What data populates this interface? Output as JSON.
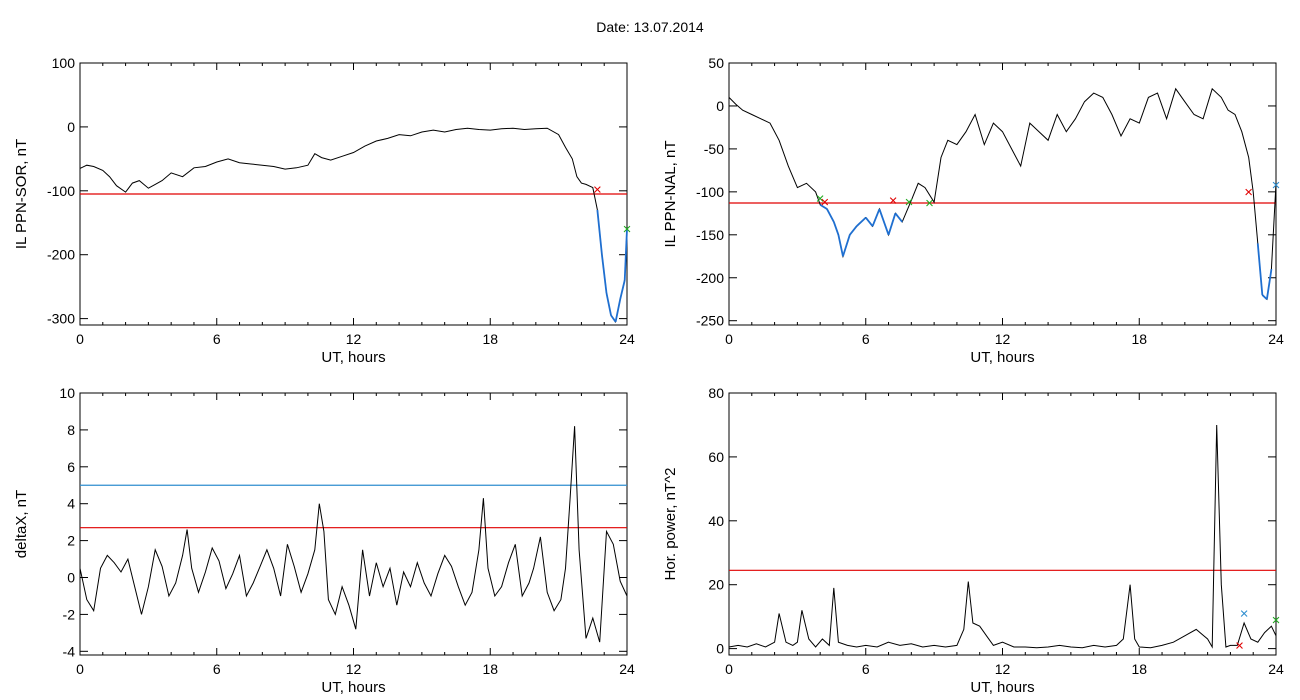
{
  "title": "Date:  13.07.2014",
  "colors": {
    "red": "#e00000",
    "blue": "#1f6fd0",
    "cyan": "#2f8ecf",
    "green": "#22aa22",
    "line": "#000000"
  },
  "chart_data": [
    {
      "type": "line",
      "ylabel": "IL PPN-SOR, nT",
      "xlabel": "UT, hours",
      "xlim": [
        0,
        24
      ],
      "ylim": [
        -310,
        100
      ],
      "xticks": [
        "0",
        "6",
        "12",
        "18",
        "24"
      ],
      "yticks": [
        "100",
        "0",
        "-100",
        "-200",
        "-300"
      ],
      "ytick_values": [
        100,
        0,
        -100,
        -200,
        -300
      ],
      "threshold": -105,
      "series": [
        {
          "x": [
            0,
            0.3,
            0.6,
            1,
            1.3,
            1.6,
            2,
            2.3,
            2.6,
            3,
            3.3,
            3.6,
            4,
            4.5,
            5,
            5.5,
            6,
            6.5,
            7,
            7.5,
            8,
            8.5,
            9,
            9.5,
            10,
            10.3,
            10.6,
            11,
            11.5,
            12,
            12.5,
            13,
            13.5,
            14,
            14.5,
            15,
            15.5,
            16,
            16.5,
            17,
            17.5,
            18,
            18.5,
            19,
            19.5,
            20,
            20.5,
            21,
            21.3,
            21.6,
            21.8,
            22,
            22.2,
            22.5,
            22.7,
            22.9,
            23.1,
            23.3,
            23.5,
            23.7,
            23.9,
            24
          ],
          "y": [
            -65,
            -60,
            -62,
            -68,
            -78,
            -92,
            -102,
            -88,
            -84,
            -96,
            -90,
            -84,
            -72,
            -78,
            -64,
            -62,
            -55,
            -50,
            -56,
            -58,
            -60,
            -62,
            -66,
            -64,
            -60,
            -42,
            -48,
            -52,
            -46,
            -40,
            -30,
            -22,
            -18,
            -12,
            -14,
            -8,
            -5,
            -8,
            -4,
            -2,
            -4,
            -5,
            -3,
            -2,
            -4,
            -3,
            -2,
            -12,
            -32,
            -50,
            -78,
            -88,
            -90,
            -95,
            -130,
            -200,
            -260,
            -295,
            -305,
            -270,
            -240,
            -160
          ]
        }
      ],
      "markers": [
        {
          "x": 22.7,
          "y": -98,
          "symbol": "×",
          "color": "red"
        },
        {
          "x": 24,
          "y": -160,
          "symbol": "×",
          "color": "green"
        }
      ]
    },
    {
      "type": "line",
      "ylabel": "IL PPN-NAL, nT",
      "xlabel": "UT, hours",
      "xlim": [
        0,
        24
      ],
      "ylim": [
        -255,
        50
      ],
      "xticks": [
        "0",
        "6",
        "12",
        "18",
        "24"
      ],
      "yticks": [
        "50",
        "0",
        "-50",
        "-100",
        "-150",
        "-200",
        "-250"
      ],
      "ytick_values": [
        50,
        0,
        -50,
        -100,
        -150,
        -200,
        -250
      ],
      "threshold": -113,
      "series": [
        {
          "x": [
            0,
            0.3,
            0.6,
            1,
            1.4,
            1.8,
            2.2,
            2.6,
            3,
            3.4,
            3.8,
            4,
            4.3,
            4.6,
            4.8,
            5,
            5.3,
            5.6,
            6,
            6.3,
            6.6,
            7,
            7.3,
            7.6,
            8,
            8.3,
            8.6,
            9,
            9.3,
            9.6,
            10,
            10.4,
            10.8,
            11.2,
            11.6,
            12,
            12.4,
            12.8,
            13.2,
            13.6,
            14,
            14.4,
            14.8,
            15.2,
            15.6,
            16,
            16.4,
            16.8,
            17.2,
            17.6,
            18,
            18.4,
            18.8,
            19.2,
            19.6,
            20,
            20.4,
            20.8,
            21.2,
            21.6,
            21.9,
            22.2,
            22.5,
            22.8,
            23,
            23.2,
            23.4,
            23.6,
            23.8,
            24
          ],
          "y": [
            10,
            2,
            -5,
            -10,
            -15,
            -20,
            -40,
            -70,
            -95,
            -90,
            -100,
            -115,
            -120,
            -135,
            -150,
            -175,
            -150,
            -140,
            -130,
            -140,
            -120,
            -150,
            -125,
            -135,
            -110,
            -90,
            -95,
            -112,
            -60,
            -40,
            -45,
            -30,
            -10,
            -45,
            -20,
            -30,
            -50,
            -70,
            -20,
            -30,
            -40,
            -10,
            -30,
            -15,
            5,
            15,
            10,
            -10,
            -35,
            -15,
            -20,
            10,
            15,
            -15,
            20,
            5,
            -10,
            -15,
            20,
            10,
            -5,
            -10,
            -30,
            -60,
            -100,
            -160,
            -220,
            -225,
            -190,
            -90
          ]
        }
      ],
      "markers": [
        {
          "x": 4.0,
          "y": -108,
          "symbol": "×",
          "color": "green"
        },
        {
          "x": 4.2,
          "y": -112,
          "symbol": "×",
          "color": "red"
        },
        {
          "x": 7.2,
          "y": -110,
          "symbol": "×",
          "color": "red"
        },
        {
          "x": 7.9,
          "y": -112,
          "symbol": "×",
          "color": "green"
        },
        {
          "x": 8.8,
          "y": -113,
          "symbol": "×",
          "color": "green"
        },
        {
          "x": 22.8,
          "y": -100,
          "symbol": "×",
          "color": "red"
        },
        {
          "x": 24,
          "y": -92,
          "symbol": "×",
          "color": "cyan"
        }
      ]
    },
    {
      "type": "line",
      "ylabel": "deltaX, nT",
      "xlabel": "UT, hours",
      "xlim": [
        0,
        24
      ],
      "ylim": [
        -4.2,
        10
      ],
      "xticks": [
        "0",
        "6",
        "12",
        "18",
        "24"
      ],
      "yticks": [
        "10",
        "8",
        "6",
        "4",
        "2",
        "0",
        "-2",
        "-4"
      ],
      "ytick_values": [
        10,
        8,
        6,
        4,
        2,
        0,
        -2,
        -4
      ],
      "threshold": 2.7,
      "threshold2": 5.0,
      "series": [
        {
          "x": [
            0,
            0.3,
            0.6,
            0.9,
            1.2,
            1.5,
            1.8,
            2.1,
            2.4,
            2.7,
            3,
            3.3,
            3.6,
            3.9,
            4.2,
            4.5,
            4.7,
            4.9,
            5.2,
            5.5,
            5.8,
            6.1,
            6.4,
            6.7,
            7,
            7.3,
            7.6,
            7.9,
            8.2,
            8.5,
            8.8,
            9.1,
            9.4,
            9.7,
            10,
            10.3,
            10.5,
            10.7,
            10.9,
            11.2,
            11.5,
            11.8,
            12.1,
            12.4,
            12.7,
            13,
            13.3,
            13.6,
            13.9,
            14.2,
            14.5,
            14.8,
            15.1,
            15.4,
            15.7,
            16,
            16.3,
            16.6,
            16.9,
            17.2,
            17.5,
            17.7,
            17.9,
            18.2,
            18.5,
            18.8,
            19.1,
            19.4,
            19.7,
            19.9,
            20.2,
            20.5,
            20.8,
            21.1,
            21.3,
            21.5,
            21.7,
            21.9,
            22.2,
            22.5,
            22.8,
            23.1,
            23.4,
            23.7,
            24
          ],
          "y": [
            0.5,
            -1.2,
            -1.8,
            0.5,
            1.2,
            0.8,
            0.3,
            1.0,
            -0.5,
            -2.0,
            -0.5,
            1.5,
            0.6,
            -1.0,
            -0.3,
            1.2,
            2.6,
            0.5,
            -0.8,
            0.3,
            1.6,
            0.9,
            -0.6,
            0.2,
            1.2,
            -1.0,
            -0.3,
            0.6,
            1.5,
            0.5,
            -1.0,
            1.8,
            0.6,
            -0.8,
            0.2,
            1.5,
            4.0,
            2.5,
            -1.2,
            -2.0,
            -0.5,
            -1.5,
            -2.8,
            1.5,
            -1.0,
            0.8,
            -0.5,
            0.5,
            -1.5,
            0.3,
            -0.5,
            0.8,
            -0.3,
            -1.0,
            0.2,
            1.2,
            0.6,
            -0.5,
            -1.5,
            -0.8,
            1.5,
            4.3,
            0.5,
            -1.0,
            -0.5,
            0.8,
            1.8,
            -1.0,
            -0.3,
            0.5,
            2.2,
            -0.8,
            -1.8,
            -1.2,
            0.5,
            4.2,
            8.2,
            1.5,
            -3.3,
            -2.2,
            -3.5,
            2.5,
            1.8,
            -0.2,
            -1.0
          ]
        }
      ],
      "markers": []
    },
    {
      "type": "line",
      "ylabel": "Hor. power, nT^2",
      "xlabel": "UT, hours",
      "xlim": [
        0,
        24
      ],
      "ylim": [
        -2,
        80
      ],
      "xticks": [
        "0",
        "6",
        "12",
        "18",
        "24"
      ],
      "yticks": [
        "80",
        "60",
        "40",
        "20",
        "0"
      ],
      "ytick_values": [
        80,
        60,
        40,
        20,
        0
      ],
      "threshold": 24.5,
      "series": [
        {
          "x": [
            0,
            0.4,
            0.8,
            1.2,
            1.6,
            2,
            2.2,
            2.5,
            2.8,
            3,
            3.2,
            3.5,
            3.8,
            4.1,
            4.4,
            4.6,
            4.8,
            5.2,
            5.6,
            6,
            6.5,
            7,
            7.5,
            8,
            8.5,
            9,
            9.5,
            10,
            10.3,
            10.5,
            10.7,
            11,
            11.3,
            11.6,
            12,
            12.5,
            13,
            13.5,
            14,
            14.5,
            15,
            15.5,
            16,
            16.5,
            17,
            17.3,
            17.6,
            17.8,
            18,
            18.5,
            19,
            19.5,
            20,
            20.5,
            21,
            21.2,
            21.4,
            21.6,
            21.8,
            22,
            22.3,
            22.6,
            22.9,
            23.2,
            23.5,
            23.8,
            24
          ],
          "y": [
            0.5,
            1,
            0.5,
            1.5,
            0.5,
            2,
            11,
            2,
            1,
            2,
            12,
            3,
            0.5,
            3,
            1,
            19,
            2,
            1,
            0.5,
            1,
            0.5,
            2,
            1,
            1.5,
            0.5,
            1,
            0.5,
            1,
            6,
            21,
            8,
            7,
            4,
            1,
            2,
            0.5,
            0.5,
            0.3,
            0.5,
            1,
            0.5,
            0.3,
            1,
            0.5,
            1,
            3,
            20,
            3,
            0.5,
            0.3,
            1,
            2,
            4,
            6,
            3,
            0.5,
            70,
            20,
            0.5,
            1,
            1,
            8,
            3,
            2,
            5,
            7,
            4
          ]
        }
      ],
      "markers": [
        {
          "x": 22.4,
          "y": 1,
          "symbol": "×",
          "color": "red"
        },
        {
          "x": 22.6,
          "y": 11,
          "symbol": "×",
          "color": "cyan"
        },
        {
          "x": 24,
          "y": 9,
          "symbol": "×",
          "color": "green"
        }
      ]
    }
  ]
}
